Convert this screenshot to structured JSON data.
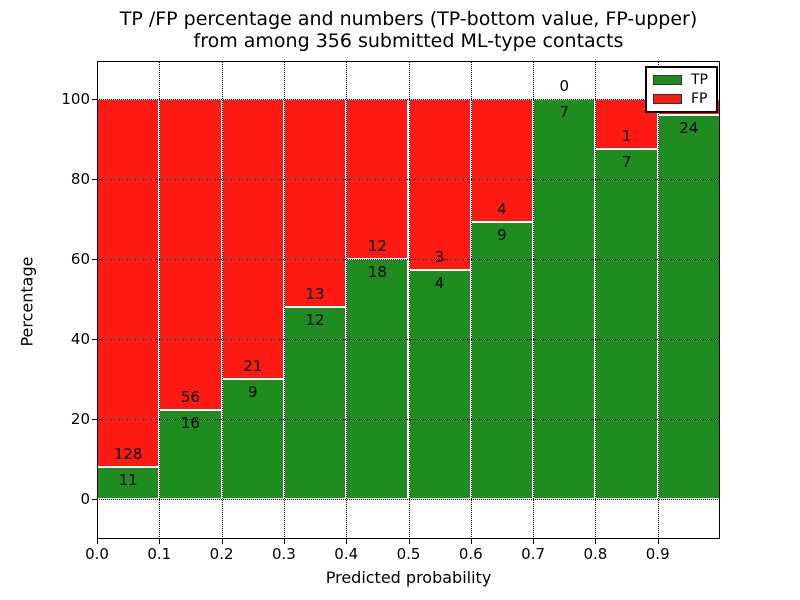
{
  "title": {
    "line1": "TP /FP percentage and numbers (TP-bottom value, FP-upper)",
    "line2": "from among 356 submitted ML-type contacts"
  },
  "axes": {
    "xlabel": "Predicted probability",
    "ylabel": "Percentage",
    "xtick_labels": [
      "0.0",
      "0.1",
      "0.2",
      "0.3",
      "0.4",
      "0.5",
      "0.6",
      "0.7",
      "0.8",
      "0.9"
    ],
    "ytick_labels": [
      "0",
      "20",
      "40",
      "60",
      "80",
      "100"
    ],
    "ytick_values": [
      0,
      20,
      40,
      60,
      80,
      100
    ]
  },
  "legend": {
    "entries": [
      {
        "label": "TP",
        "color": "#1f8c1f"
      },
      {
        "label": "FP",
        "color": "#fc1a13"
      }
    ]
  },
  "colors": {
    "tp": "#1f8c1f",
    "fp": "#fc1a13",
    "background": "#ffffff",
    "text": "#000000",
    "grid": "#000000",
    "bar_edge": "#ffffff"
  },
  "chart_data": {
    "type": "bar",
    "stacked": true,
    "normalized_to_percent": true,
    "title": "TP /FP percentage and numbers (TP-bottom value, FP-upper) from among 356 submitted ML-type contacts",
    "xlabel": "Predicted probability",
    "ylabel": "Percentage",
    "categories": [
      "0.0-0.1",
      "0.1-0.2",
      "0.2-0.3",
      "0.3-0.4",
      "0.4-0.5",
      "0.5-0.6",
      "0.6-0.7",
      "0.7-0.8",
      "0.8-0.9",
      "0.9-1.0"
    ],
    "series": [
      {
        "name": "TP",
        "color": "#1f8c1f",
        "values": [
          11,
          16,
          9,
          12,
          18,
          4,
          9,
          7,
          7,
          24
        ]
      },
      {
        "name": "FP",
        "color": "#fc1a13",
        "values": [
          128,
          56,
          21,
          13,
          12,
          3,
          4,
          0,
          1,
          1
        ]
      }
    ],
    "tp_percent_heights": [
      7.91,
      22.22,
      30.0,
      48.0,
      60.0,
      57.14,
      69.23,
      100.0,
      87.5,
      96.0
    ],
    "total_contacts": 356,
    "xlim": [
      0.0,
      1.0
    ],
    "ylim": [
      -10.25,
      109.5
    ],
    "xticks": [
      0.0,
      0.1,
      0.2,
      0.3,
      0.4,
      0.5,
      0.6,
      0.7,
      0.8,
      0.9
    ],
    "yticks": [
      0,
      20,
      40,
      60,
      80,
      100
    ],
    "grid": "dotted black, drawn above bars",
    "legend_position": "upper right",
    "bar_labels": "TP count printed just below segment boundary, FP count just above; last bar FP label occluded by legend"
  }
}
